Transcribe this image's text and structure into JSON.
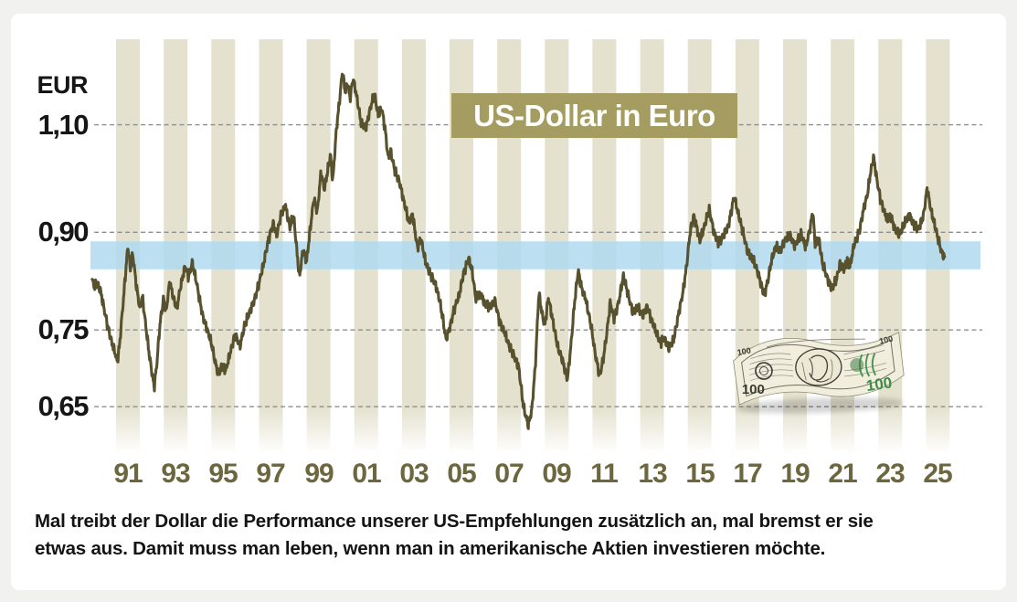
{
  "page": {
    "background": "#F1F1EF",
    "card_background": "#FFFFFF"
  },
  "chart": {
    "title": "US-Dollar in Euro",
    "title_bg_color": "#A49C60",
    "unit_label": "EUR",
    "y_ticks": [
      {
        "label": "1,10",
        "value": 1.1
      },
      {
        "label": "0,90",
        "value": 0.9
      },
      {
        "label": "0,75",
        "value": 0.75
      },
      {
        "label": "0,65",
        "value": 0.65
      }
    ],
    "x_ticks": [
      {
        "label": "91",
        "year": 1991
      },
      {
        "label": "93",
        "year": 1993
      },
      {
        "label": "95",
        "year": 1995
      },
      {
        "label": "97",
        "year": 1997
      },
      {
        "label": "99",
        "year": 1999
      },
      {
        "label": "01",
        "year": 2001
      },
      {
        "label": "03",
        "year": 2003
      },
      {
        "label": "05",
        "year": 2005
      },
      {
        "label": "07",
        "year": 2007
      },
      {
        "label": "09",
        "year": 2009
      },
      {
        "label": "11",
        "year": 2011
      },
      {
        "label": "13",
        "year": 2013
      },
      {
        "label": "15",
        "year": 2015
      },
      {
        "label": "17",
        "year": 2017
      },
      {
        "label": "19",
        "year": 2019
      },
      {
        "label": "21",
        "year": 2021
      },
      {
        "label": "23",
        "year": 2023
      },
      {
        "label": "25",
        "year": 2025
      }
    ],
    "stripe_color": "#E4E1CE",
    "grid_color": "#8E8E8E",
    "line_color": "#57512E",
    "tick_label_color": "#6C673E",
    "highlight_band": {
      "value_from": 0.84,
      "value_to": 0.885,
      "color": "rgba(176,217,240,0.85)"
    }
  },
  "dollar_bill": {
    "denomination": "100",
    "note_color": "#F1EEDD",
    "ink_color": "#3C3C34",
    "green_color": "#3E7C46"
  },
  "caption": {
    "lines": [
      "Mal treibt der Dollar die Performance unserer US-Empfehlungen zusätzlich an, mal bremst er sie",
      "etwas aus. Damit muss man leben, wenn man in amerikanische Aktien investieren möchte."
    ]
  },
  "chart_data": {
    "type": "line",
    "title": "US-Dollar in Euro",
    "ylabel": "EUR",
    "y_scale": "log",
    "x_range": [
      1990.0,
      2025.8
    ],
    "ylim": [
      0.58,
      1.26
    ],
    "grid": "horizontal dashed at 1.10 / 0.90 / 0.75 / 0.65",
    "legend": "none",
    "series": [
      {
        "name": "US-Dollar in Euro",
        "points": [
          [
            1990.0,
            0.823
          ],
          [
            1990.1,
            0.812
          ],
          [
            1990.2,
            0.818
          ],
          [
            1990.35,
            0.806
          ],
          [
            1990.5,
            0.78
          ],
          [
            1990.65,
            0.755
          ],
          [
            1990.8,
            0.735
          ],
          [
            1990.95,
            0.72
          ],
          [
            1991.05,
            0.706
          ],
          [
            1991.15,
            0.73
          ],
          [
            1991.3,
            0.79
          ],
          [
            1991.5,
            0.878
          ],
          [
            1991.6,
            0.84
          ],
          [
            1991.7,
            0.865
          ],
          [
            1991.85,
            0.815
          ],
          [
            1992.0,
            0.78
          ],
          [
            1992.1,
            0.8
          ],
          [
            1992.25,
            0.755
          ],
          [
            1992.4,
            0.715
          ],
          [
            1992.6,
            0.674
          ],
          [
            1992.7,
            0.7
          ],
          [
            1992.85,
            0.76
          ],
          [
            1993.0,
            0.796
          ],
          [
            1993.1,
            0.776
          ],
          [
            1993.25,
            0.82
          ],
          [
            1993.4,
            0.798
          ],
          [
            1993.55,
            0.78
          ],
          [
            1993.7,
            0.812
          ],
          [
            1993.9,
            0.845
          ],
          [
            1994.05,
            0.828
          ],
          [
            1994.2,
            0.851
          ],
          [
            1994.35,
            0.825
          ],
          [
            1994.5,
            0.795
          ],
          [
            1994.65,
            0.768
          ],
          [
            1994.85,
            0.748
          ],
          [
            1995.0,
            0.732
          ],
          [
            1995.15,
            0.708
          ],
          [
            1995.3,
            0.69
          ],
          [
            1995.45,
            0.702
          ],
          [
            1995.6,
            0.695
          ],
          [
            1995.8,
            0.72
          ],
          [
            1996.0,
            0.744
          ],
          [
            1996.2,
            0.728
          ],
          [
            1996.4,
            0.756
          ],
          [
            1996.6,
            0.775
          ],
          [
            1996.8,
            0.792
          ],
          [
            1997.0,
            0.818
          ],
          [
            1997.2,
            0.85
          ],
          [
            1997.4,
            0.888
          ],
          [
            1997.6,
            0.915
          ],
          [
            1997.75,
            0.895
          ],
          [
            1997.9,
            0.925
          ],
          [
            1998.1,
            0.947
          ],
          [
            1998.3,
            0.908
          ],
          [
            1998.45,
            0.93
          ],
          [
            1998.6,
            0.865
          ],
          [
            1998.7,
            0.828
          ],
          [
            1998.85,
            0.872
          ],
          [
            1999.0,
            0.852
          ],
          [
            1999.15,
            0.905
          ],
          [
            1999.3,
            0.958
          ],
          [
            1999.45,
            0.935
          ],
          [
            1999.6,
            1.005
          ],
          [
            1999.75,
            0.975
          ],
          [
            2000.0,
            1.04
          ],
          [
            2000.1,
            0.99
          ],
          [
            2000.25,
            1.09
          ],
          [
            2000.4,
            1.16
          ],
          [
            2000.5,
            1.215
          ],
          [
            2000.62,
            1.17
          ],
          [
            2000.72,
            1.19
          ],
          [
            2000.82,
            1.155
          ],
          [
            2000.95,
            1.2
          ],
          [
            2001.1,
            1.16
          ],
          [
            2001.3,
            1.1
          ],
          [
            2001.5,
            1.095
          ],
          [
            2001.7,
            1.14
          ],
          [
            2001.85,
            1.166
          ],
          [
            2002.0,
            1.12
          ],
          [
            2002.15,
            1.135
          ],
          [
            2002.3,
            1.09
          ],
          [
            2002.42,
            1.034
          ],
          [
            2002.52,
            1.048
          ],
          [
            2002.7,
            1.01
          ],
          [
            2002.9,
            0.988
          ],
          [
            2003.1,
            0.95
          ],
          [
            2003.3,
            0.916
          ],
          [
            2003.45,
            0.93
          ],
          [
            2003.65,
            0.874
          ],
          [
            2003.8,
            0.89
          ],
          [
            2004.0,
            0.85
          ],
          [
            2004.2,
            0.832
          ],
          [
            2004.4,
            0.818
          ],
          [
            2004.6,
            0.79
          ],
          [
            2004.85,
            0.737
          ],
          [
            2005.0,
            0.752
          ],
          [
            2005.2,
            0.78
          ],
          [
            2005.4,
            0.8
          ],
          [
            2005.6,
            0.835
          ],
          [
            2005.8,
            0.858
          ],
          [
            2005.95,
            0.837
          ],
          [
            2006.1,
            0.795
          ],
          [
            2006.3,
            0.802
          ],
          [
            2006.5,
            0.787
          ],
          [
            2006.7,
            0.782
          ],
          [
            2006.9,
            0.792
          ],
          [
            2007.1,
            0.762
          ],
          [
            2007.3,
            0.748
          ],
          [
            2007.5,
            0.728
          ],
          [
            2007.7,
            0.715
          ],
          [
            2007.9,
            0.7
          ],
          [
            2008.1,
            0.65
          ],
          [
            2008.3,
            0.628
          ],
          [
            2008.45,
            0.645
          ],
          [
            2008.6,
            0.7
          ],
          [
            2008.75,
            0.804
          ],
          [
            2008.9,
            0.77
          ],
          [
            2009.0,
            0.756
          ],
          [
            2009.15,
            0.797
          ],
          [
            2009.35,
            0.76
          ],
          [
            2009.55,
            0.725
          ],
          [
            2009.7,
            0.713
          ],
          [
            2009.95,
            0.684
          ],
          [
            2010.1,
            0.73
          ],
          [
            2010.25,
            0.79
          ],
          [
            2010.4,
            0.838
          ],
          [
            2010.55,
            0.81
          ],
          [
            2010.7,
            0.797
          ],
          [
            2010.95,
            0.754
          ],
          [
            2011.1,
            0.72
          ],
          [
            2011.3,
            0.688
          ],
          [
            2011.45,
            0.71
          ],
          [
            2011.6,
            0.745
          ],
          [
            2011.75,
            0.79
          ],
          [
            2011.9,
            0.766
          ],
          [
            2012.1,
            0.79
          ],
          [
            2012.3,
            0.83
          ],
          [
            2012.5,
            0.8
          ],
          [
            2012.7,
            0.775
          ],
          [
            2012.9,
            0.782
          ],
          [
            2013.1,
            0.77
          ],
          [
            2013.3,
            0.784
          ],
          [
            2013.5,
            0.762
          ],
          [
            2013.7,
            0.745
          ],
          [
            2013.85,
            0.731
          ],
          [
            2014.0,
            0.74
          ],
          [
            2014.2,
            0.725
          ],
          [
            2014.4,
            0.735
          ],
          [
            2014.6,
            0.77
          ],
          [
            2014.8,
            0.805
          ],
          [
            2014.95,
            0.845
          ],
          [
            2015.1,
            0.9
          ],
          [
            2015.25,
            0.928
          ],
          [
            2015.4,
            0.905
          ],
          [
            2015.5,
            0.885
          ],
          [
            2015.7,
            0.91
          ],
          [
            2015.9,
            0.939
          ],
          [
            2016.1,
            0.9
          ],
          [
            2016.3,
            0.88
          ],
          [
            2016.5,
            0.895
          ],
          [
            2016.7,
            0.91
          ],
          [
            2016.95,
            0.963
          ],
          [
            2017.1,
            0.935
          ],
          [
            2017.3,
            0.903
          ],
          [
            2017.5,
            0.87
          ],
          [
            2017.8,
            0.85
          ],
          [
            2018.0,
            0.828
          ],
          [
            2018.2,
            0.8
          ],
          [
            2018.35,
            0.82
          ],
          [
            2018.5,
            0.851
          ],
          [
            2018.7,
            0.878
          ],
          [
            2018.9,
            0.87
          ],
          [
            2019.1,
            0.888
          ],
          [
            2019.3,
            0.893
          ],
          [
            2019.5,
            0.878
          ],
          [
            2019.75,
            0.898
          ],
          [
            2019.95,
            0.875
          ],
          [
            2020.15,
            0.91
          ],
          [
            2020.25,
            0.936
          ],
          [
            2020.35,
            0.878
          ],
          [
            2020.5,
            0.89
          ],
          [
            2020.65,
            0.85
          ],
          [
            2020.9,
            0.822
          ],
          [
            2021.05,
            0.81
          ],
          [
            2021.25,
            0.825
          ],
          [
            2021.4,
            0.85
          ],
          [
            2021.55,
            0.84
          ],
          [
            2021.7,
            0.855
          ],
          [
            2021.8,
            0.843
          ],
          [
            2022.0,
            0.882
          ],
          [
            2022.2,
            0.9
          ],
          [
            2022.35,
            0.933
          ],
          [
            2022.55,
            0.968
          ],
          [
            2022.65,
            1.0
          ],
          [
            2022.8,
            1.036
          ],
          [
            2022.95,
            0.99
          ],
          [
            2023.1,
            0.955
          ],
          [
            2023.25,
            0.935
          ],
          [
            2023.4,
            0.92
          ],
          [
            2023.5,
            0.93
          ],
          [
            2023.7,
            0.905
          ],
          [
            2023.9,
            0.896
          ],
          [
            2024.1,
            0.915
          ],
          [
            2024.3,
            0.93
          ],
          [
            2024.5,
            0.912
          ],
          [
            2024.7,
            0.905
          ],
          [
            2024.9,
            0.93
          ],
          [
            2025.05,
            0.977
          ],
          [
            2025.2,
            0.94
          ],
          [
            2025.35,
            0.915
          ],
          [
            2025.5,
            0.89
          ],
          [
            2025.65,
            0.868
          ],
          [
            2025.8,
            0.858
          ]
        ]
      }
    ]
  }
}
